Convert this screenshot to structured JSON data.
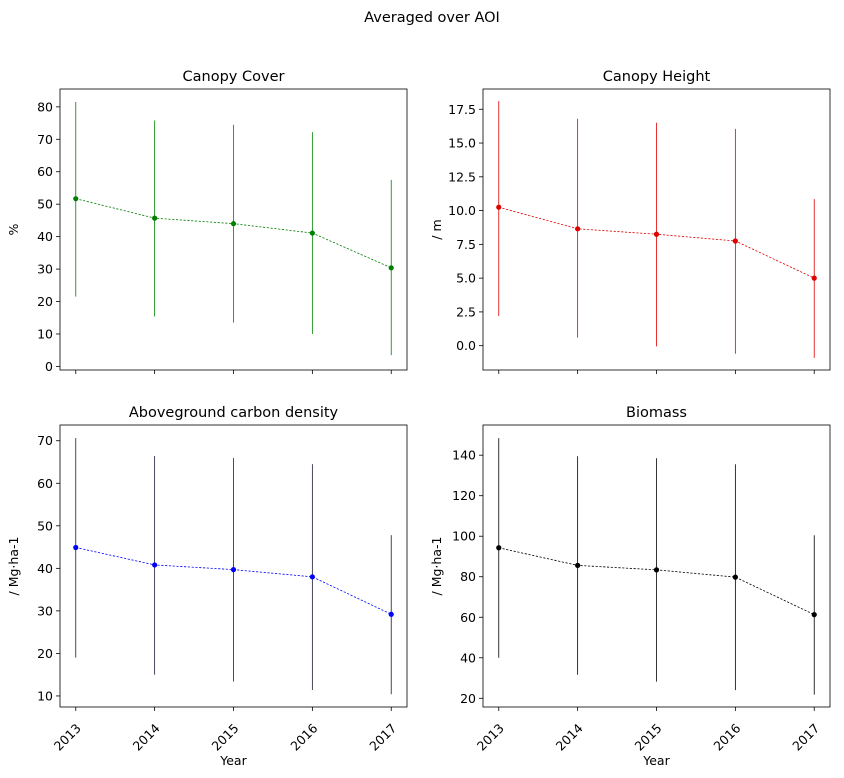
{
  "figure": {
    "suptitle": "Averaged over AOI"
  },
  "chart_data": [
    {
      "type": "line",
      "title": "Canopy Cover",
      "xlabel": "",
      "ylabel": "%",
      "color": "#008000",
      "x": [
        2013,
        2014,
        2015,
        2016,
        2017
      ],
      "y": [
        51.7,
        45.7,
        44.0,
        41.1,
        30.4
      ],
      "err_low": [
        21.5,
        15.4,
        13.5,
        10.0,
        3.5
      ],
      "err_high": [
        81.5,
        75.8,
        74.5,
        72.2,
        57.5
      ],
      "ylim": [
        -1.1,
        85.5
      ],
      "yticks": [
        0,
        10,
        20,
        30,
        40,
        50,
        60,
        70,
        80
      ],
      "ytick_labels": [
        "0",
        "10",
        "20",
        "30",
        "40",
        "50",
        "60",
        "70",
        "80"
      ],
      "xtick_labels": [],
      "grid": false
    },
    {
      "type": "line",
      "title": "Canopy Height",
      "xlabel": "",
      "ylabel": "/ m",
      "color": "#e00000",
      "x": [
        2013,
        2014,
        2015,
        2016,
        2017
      ],
      "y": [
        10.25,
        8.65,
        8.25,
        7.75,
        5.0
      ],
      "err_low": [
        2.2,
        0.6,
        -0.05,
        -0.6,
        -0.9
      ],
      "err_high": [
        18.1,
        16.8,
        16.5,
        16.05,
        10.85
      ],
      "ylim": [
        -1.8,
        19.0
      ],
      "yticks": [
        0,
        2.5,
        5,
        7.5,
        10,
        12.5,
        15,
        17.5
      ],
      "ytick_labels": [
        "0.0",
        "2.5",
        "5.0",
        "7.5",
        "10.0",
        "12.5",
        "15.0",
        "17.5"
      ],
      "xtick_labels": [],
      "grid": false
    },
    {
      "type": "line",
      "title": "Aboveground carbon density",
      "xlabel": "Year",
      "ylabel": "/ Mg·ha-1",
      "color": "#0000ff",
      "bar_color": "#1a1a3a",
      "x": [
        2013,
        2014,
        2015,
        2016,
        2017
      ],
      "y": [
        44.9,
        40.8,
        39.7,
        38.0,
        29.2
      ],
      "err_low": [
        19.0,
        15.0,
        13.4,
        11.4,
        10.4
      ],
      "err_high": [
        70.6,
        66.4,
        65.9,
        64.5,
        47.8
      ],
      "ylim": [
        7.4,
        73.7
      ],
      "yticks": [
        10,
        20,
        30,
        40,
        50,
        60,
        70
      ],
      "ytick_labels": [
        "10",
        "20",
        "30",
        "40",
        "50",
        "60",
        "70"
      ],
      "xtick_labels": [
        "2013",
        "2014",
        "2015",
        "2016",
        "2017"
      ],
      "grid": false
    },
    {
      "type": "line",
      "title": "Biomass",
      "xlabel": "Year",
      "ylabel": "/ Mg·ha-1",
      "color": "#000000",
      "x": [
        2013,
        2014,
        2015,
        2016,
        2017
      ],
      "y": [
        94.3,
        85.6,
        83.4,
        79.8,
        61.3
      ],
      "err_low": [
        40.0,
        31.6,
        28.2,
        24.0,
        21.8
      ],
      "err_high": [
        148.4,
        139.5,
        138.5,
        135.5,
        100.5
      ],
      "ylim": [
        15.7,
        154.9
      ],
      "yticks": [
        20,
        40,
        60,
        80,
        100,
        120,
        140
      ],
      "ytick_labels": [
        "20",
        "40",
        "60",
        "80",
        "100",
        "120",
        "140"
      ],
      "xtick_labels": [
        "2013",
        "2014",
        "2015",
        "2016",
        "2017"
      ],
      "grid": false
    }
  ]
}
